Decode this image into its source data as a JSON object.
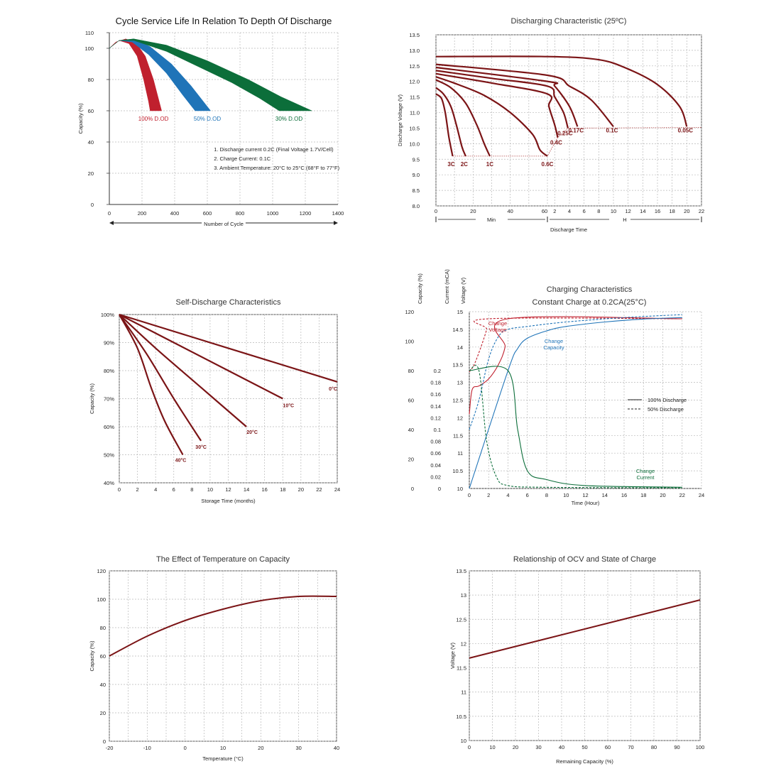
{
  "colors": {
    "maroon": "#7b1416",
    "red": "#c0202e",
    "blue": "#1f74b8",
    "green": "#0c6e3a",
    "grid": "#b8b8b8"
  },
  "chart_data": [
    {
      "id": "cycle",
      "type": "area",
      "title": "Cycle Service Life In Relation To Depth Of Discharge",
      "xlabel": "Number of Cycle",
      "ylabel": "Capacity (%)",
      "xlim": [
        0,
        1400
      ],
      "ylim": [
        0,
        110
      ],
      "xticks": [
        0,
        200,
        400,
        600,
        800,
        1000,
        1200,
        1400
      ],
      "yticks": [
        0,
        20,
        40,
        60,
        80,
        100,
        110
      ],
      "grid": true,
      "series": [
        {
          "name": "100% D.OD",
          "color": "#c0202e",
          "upper": [
            [
              0,
              100
            ],
            [
              40,
              104
            ],
            [
              100,
              106
            ],
            [
              160,
              104
            ],
            [
              220,
              95
            ],
            [
              270,
              80
            ],
            [
              300,
              68
            ],
            [
              320,
              60
            ]
          ],
          "lower": [
            [
              0,
              100
            ],
            [
              60,
              105
            ],
            [
              120,
              103
            ],
            [
              170,
              95
            ],
            [
              210,
              80
            ],
            [
              240,
              66
            ],
            [
              250,
              60
            ]
          ]
        },
        {
          "name": "50% D.OD",
          "color": "#1f74b8",
          "upper": [
            [
              0,
              100
            ],
            [
              60,
              105
            ],
            [
              150,
              106
            ],
            [
              250,
              101
            ],
            [
              380,
              90
            ],
            [
              500,
              76
            ],
            [
              590,
              64
            ],
            [
              620,
              60
            ]
          ],
          "lower": [
            [
              0,
              100
            ],
            [
              60,
              105
            ],
            [
              140,
              104
            ],
            [
              240,
              96
            ],
            [
              350,
              84
            ],
            [
              450,
              70
            ],
            [
              510,
              62
            ],
            [
              525,
              60
            ]
          ]
        },
        {
          "name": "30% D.OD",
          "color": "#0c6e3a",
          "upper": [
            [
              0,
              100
            ],
            [
              60,
              105
            ],
            [
              150,
              106
            ],
            [
              350,
              102
            ],
            [
              600,
              92
            ],
            [
              850,
              80
            ],
            [
              1050,
              69
            ],
            [
              1240,
              60
            ]
          ],
          "lower": [
            [
              0,
              100
            ],
            [
              60,
              105
            ],
            [
              150,
              105
            ],
            [
              350,
              98
            ],
            [
              550,
              88
            ],
            [
              750,
              78
            ],
            [
              920,
              68
            ],
            [
              1040,
              60
            ]
          ]
        }
      ],
      "notes": [
        "1.  Discharge current 0.2C (Final Voltage 1.7V/Cell)",
        "2.  Charge Current: 0.1C",
        "3.  Ambient Temperature: 20°C to 25°C (68°F to 77°F)"
      ]
    },
    {
      "id": "discharge",
      "type": "line",
      "title": "Discharging Characteristic (25ºC)",
      "xlabel": "Discharge Time",
      "ylabel": "Discharge Voltage (V)",
      "ylim": [
        8.0,
        13.5
      ],
      "yticks": [
        8.0,
        8.5,
        9.0,
        9.5,
        10.0,
        10.5,
        11.0,
        11.5,
        12.0,
        12.5,
        13.0,
        13.5
      ],
      "x_min_ticks": [
        "0",
        "20",
        "40",
        "60"
      ],
      "x_hour_ticks": [
        "2",
        "4",
        "6",
        "8",
        "10",
        "12",
        "14",
        "16",
        "18",
        "20",
        "22"
      ],
      "x_min_label": "Min",
      "x_hour_label": "H",
      "grid": true,
      "series": [
        {
          "name": "3C",
          "points": [
            [
              "0m",
              11.6
            ],
            [
              "3m",
              11.45
            ],
            [
              "5m",
              11.0
            ],
            [
              "7m",
              10.2
            ],
            [
              "9m",
              9.6
            ]
          ]
        },
        {
          "name": "2C",
          "points": [
            [
              "0m",
              11.8
            ],
            [
              "4m",
              11.6
            ],
            [
              "8m",
              11.2
            ],
            [
              "11m",
              10.6
            ],
            [
              "14m",
              9.9
            ],
            [
              "16m",
              9.6
            ]
          ]
        },
        {
          "name": "1C",
          "points": [
            [
              "0m",
              12.05
            ],
            [
              "8m",
              11.8
            ],
            [
              "16m",
              11.3
            ],
            [
              "22m",
              10.6
            ],
            [
              "26m",
              10.0
            ],
            [
              "29m",
              9.6
            ]
          ]
        },
        {
          "name": "0.6C",
          "points": [
            [
              "0m",
              12.15
            ],
            [
              "12m",
              11.9
            ],
            [
              "26m",
              11.55
            ],
            [
              "40m",
              11.0
            ],
            [
              "52m",
              10.3
            ],
            [
              "56m",
              9.8
            ],
            [
              "60m",
              9.6
            ]
          ]
        },
        {
          "name": "0.4C",
          "points": [
            [
              "0m",
              12.25
            ],
            [
              "30m",
              11.95
            ],
            [
              "60m",
              11.6
            ],
            [
              "1.2h",
              11.2
            ],
            [
              "2.0h",
              10.6
            ],
            [
              "2.4h",
              10.2
            ]
          ]
        },
        {
          "name": "0.25C",
          "points": [
            [
              "0m",
              12.35
            ],
            [
              "30m",
              12.1
            ],
            [
              "60m",
              11.85
            ],
            [
              "2h",
              11.5
            ],
            [
              "3.2h",
              11.0
            ],
            [
              "3.8h",
              10.5
            ]
          ]
        },
        {
          "name": "0.17C",
          "points": [
            [
              "0m",
              12.45
            ],
            [
              "60m",
              12.0
            ],
            [
              "2h",
              11.85
            ],
            [
              "4h",
              11.2
            ],
            [
              "5.1h",
              10.55
            ]
          ]
        },
        {
          "name": "0.1C",
          "points": [
            [
              "0m",
              12.55
            ],
            [
              "60m",
              12.2
            ],
            [
              "4h",
              11.85
            ],
            [
              "7h",
              11.4
            ],
            [
              "10h",
              10.55
            ]
          ]
        },
        {
          "name": "0.05C",
          "points": [
            [
              "0m",
              12.8
            ],
            [
              "60m",
              12.8
            ],
            [
              "8h",
              12.7
            ],
            [
              "12h",
              12.4
            ],
            [
              "16h",
              11.9
            ],
            [
              "19h",
              11.2
            ],
            [
              "20h",
              10.55
            ]
          ]
        }
      ]
    },
    {
      "id": "self",
      "type": "line",
      "title": "Self-Discharge Characteristics",
      "xlabel": "Storage Time (months)",
      "ylabel": "Capacity (%)",
      "xlim": [
        0,
        24
      ],
      "ylim": [
        40,
        100
      ],
      "xticks": [
        0,
        2,
        4,
        6,
        8,
        10,
        12,
        14,
        16,
        18,
        20,
        22,
        24
      ],
      "yticks": [
        "40%",
        "50%",
        "60%",
        "70%",
        "80%",
        "90%",
        "100%"
      ],
      "grid": true,
      "series": [
        {
          "name": "0°C",
          "points": [
            [
              0,
              100
            ],
            [
              12,
              88
            ],
            [
              24,
              76
            ]
          ]
        },
        {
          "name": "10°C",
          "points": [
            [
              0,
              100
            ],
            [
              6,
              90
            ],
            [
              12,
              80
            ],
            [
              18,
              70
            ]
          ]
        },
        {
          "name": "20°C",
          "points": [
            [
              0,
              100
            ],
            [
              4,
              88
            ],
            [
              9,
              74
            ],
            [
              14,
              60
            ]
          ]
        },
        {
          "name": "30°C",
          "points": [
            [
              0,
              100
            ],
            [
              3,
              86
            ],
            [
              6,
              70
            ],
            [
              9,
              55
            ]
          ]
        },
        {
          "name": "40°C",
          "points": [
            [
              0,
              100
            ],
            [
              2,
              88
            ],
            [
              3.5,
              74
            ],
            [
              5,
              62
            ],
            [
              7,
              50
            ]
          ]
        }
      ]
    },
    {
      "id": "charging",
      "type": "line",
      "title": "Charging Characteristics",
      "subtitle": "Constant Charge at 0.2CA(25°C)",
      "xlabel": "Time (Hour)",
      "axis_capacity": "Capacity (%)",
      "axis_current": "Current (mCA)",
      "axis_voltage": "Voltage (V)",
      "xlim": [
        0,
        24
      ],
      "xticks": [
        0,
        2,
        4,
        6,
        8,
        10,
        12,
        14,
        16,
        18,
        20,
        22,
        24
      ],
      "capacity_ticks": [
        0,
        20,
        40,
        60,
        80,
        100,
        120
      ],
      "current_ticks": [
        "0",
        "0.02",
        "0.04",
        "0.06",
        "0.08",
        "0.1",
        "0.12",
        "0.14",
        "0.16",
        "0.18",
        "0.2"
      ],
      "voltage_ticks": [
        "10",
        "10.5",
        "11",
        "11.5",
        "12",
        "12.5",
        "13",
        "13.5",
        "14",
        "14.5",
        "15"
      ],
      "legend": {
        "solid": "100% Discharge",
        "dashed": "50% Discharge"
      },
      "labels": {
        "voltage": [
          "Change",
          "Voltage"
        ],
        "capacity": [
          "Change",
          "Capacity"
        ],
        "current": [
          "Change",
          "Current"
        ]
      },
      "series": [
        {
          "name": "Voltage 100%",
          "color": "#c0202e",
          "points": [
            [
              0,
              12.1
            ],
            [
              0.3,
              12.8
            ],
            [
              1,
              12.9
            ],
            [
              2,
              13.1
            ],
            [
              3,
              13.5
            ],
            [
              3.7,
              14.0
            ],
            [
              4,
              14.8
            ],
            [
              22,
              14.8
            ]
          ]
        },
        {
          "name": "Voltage 50%",
          "color": "#c0202e",
          "dashed": true,
          "points": [
            [
              0,
              13.3
            ],
            [
              0.5,
              13.5
            ],
            [
              1.2,
              14.0
            ],
            [
              1.8,
              14.5
            ],
            [
              2,
              14.8
            ],
            [
              22,
              14.8
            ]
          ]
        },
        {
          "name": "Capacity 100%",
          "color": "#1f74b8",
          "points": [
            [
              0,
              0
            ],
            [
              4,
              80
            ],
            [
              5,
              95
            ],
            [
              6,
              102
            ],
            [
              8,
              107
            ],
            [
              10,
              110
            ],
            [
              14,
              113
            ],
            [
              18,
              115
            ],
            [
              22,
              116
            ]
          ]
        },
        {
          "name": "Capacity 50%",
          "color": "#1f74b8",
          "dashed": true,
          "points": [
            [
              0,
              40
            ],
            [
              1,
              60
            ],
            [
              2,
              88
            ],
            [
              3,
              103
            ],
            [
              4,
              108
            ],
            [
              6,
              110
            ],
            [
              10,
              113
            ],
            [
              16,
              116
            ],
            [
              22,
              118
            ]
          ]
        },
        {
          "name": "Current 100%",
          "color": "#0c6e3a",
          "points": [
            [
              0,
              0.2
            ],
            [
              4,
              0.2
            ],
            [
              5,
              0.1
            ],
            [
              6,
              0.03
            ],
            [
              8,
              0.015
            ],
            [
              12,
              0.005
            ],
            [
              22,
              0.002
            ]
          ]
        },
        {
          "name": "Current 50%",
          "color": "#0c6e3a",
          "dashed": true,
          "points": [
            [
              0,
              0.2
            ],
            [
              1,
              0.2
            ],
            [
              1.8,
              0.08
            ],
            [
              2.8,
              0.02
            ],
            [
              4,
              0.005
            ],
            [
              8,
              0.002
            ],
            [
              22,
              0.001
            ]
          ]
        }
      ]
    },
    {
      "id": "temp",
      "type": "line",
      "title": "The Effect of Temperature on Capacity",
      "xlabel": "Temperature (°C)",
      "ylabel": "Capacity (%)",
      "xlim": [
        -20,
        40
      ],
      "ylim": [
        0,
        120
      ],
      "xticks": [
        -20,
        -10,
        0,
        10,
        20,
        30,
        40
      ],
      "yticks": [
        0,
        20,
        40,
        60,
        80,
        100,
        120
      ],
      "grid": true,
      "series": [
        {
          "name": "",
          "points": [
            [
              -20,
              60
            ],
            [
              -10,
              74
            ],
            [
              0,
              85
            ],
            [
              10,
              93
            ],
            [
              20,
              99
            ],
            [
              30,
              102
            ],
            [
              40,
              102
            ]
          ]
        }
      ]
    },
    {
      "id": "ocv",
      "type": "line",
      "title": "Relationship of OCV and State of Charge",
      "xlabel": "Remaining Capacity (%)",
      "ylabel": "Voltage (V)",
      "xlim": [
        0,
        100
      ],
      "ylim": [
        10,
        13.5
      ],
      "xticks": [
        0,
        10,
        20,
        30,
        40,
        50,
        60,
        70,
        80,
        90,
        100
      ],
      "yticks": [
        10,
        10.5,
        11,
        11.5,
        12,
        12.5,
        13,
        13.5
      ],
      "grid": true,
      "series": [
        {
          "name": "",
          "points": [
            [
              0,
              11.7
            ],
            [
              100,
              12.9
            ]
          ]
        }
      ]
    }
  ]
}
